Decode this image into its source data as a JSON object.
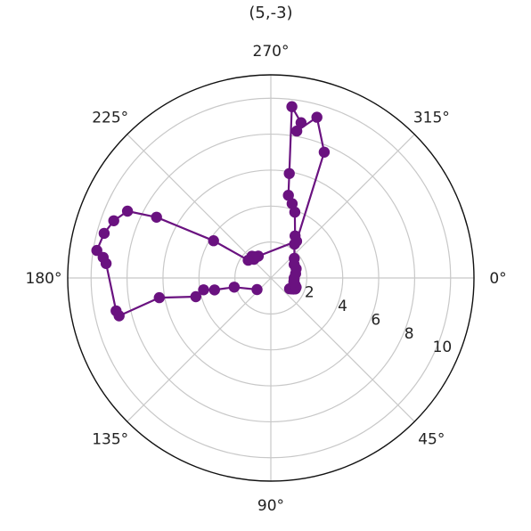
{
  "chart_data": {
    "type": "line",
    "projection": "polar",
    "title": "(5,-3)",
    "theta_unit": "degrees",
    "theta_direction": "clockwise",
    "theta_zero": "east",
    "theta_tick_labels": [
      "0°",
      "45°",
      "90°",
      "135°",
      "180°",
      "225°",
      "270°",
      "315°"
    ],
    "theta_ticks": [
      0,
      45,
      90,
      135,
      180,
      225,
      270,
      315
    ],
    "r_ticks": [
      2,
      4,
      6,
      8,
      10
    ],
    "r_tick_labels": [
      "2",
      "4",
      "6",
      "8",
      "10"
    ],
    "rlim": [
      0,
      11.3
    ],
    "grid": true,
    "series": [
      {
        "color": "#6a1280",
        "marker": "circle",
        "theta": [
          30,
          28,
          26,
          24,
          20,
          16,
          10,
          5,
          0,
          350,
          340,
          330,
          320,
          305,
          300,
          290,
          286,
          282,
          280,
          277,
          281,
          280,
          286,
          293,
          305,
          240,
          232,
          229,
          228,
          218,
          213,
          208,
          205,
          200,
          195,
          189,
          187,
          185,
          168,
          166,
          170,
          166,
          170,
          168,
          166,
          140
        ],
        "r": [
          1.2,
          1.3,
          1.4,
          1.5,
          1.5,
          1.4,
          1.3,
          1.3,
          1.3,
          1.4,
          1.5,
          1.5,
          1.7,
          2.3,
          2.7,
          3.9,
          4.3,
          4.7,
          5.9,
          9.6,
          8.8,
          8.3,
          9.3,
          7.6,
          2.5,
          1.4,
          1.5,
          1.6,
          1.4,
          1.6,
          3.8,
          7.2,
          8.8,
          9.3,
          9.6,
          9.8,
          9.4,
          9.2,
          8.8,
          8.7,
          6.3,
          4.3,
          3.8,
          3.2,
          2.1,
          1.0
        ]
      }
    ]
  }
}
